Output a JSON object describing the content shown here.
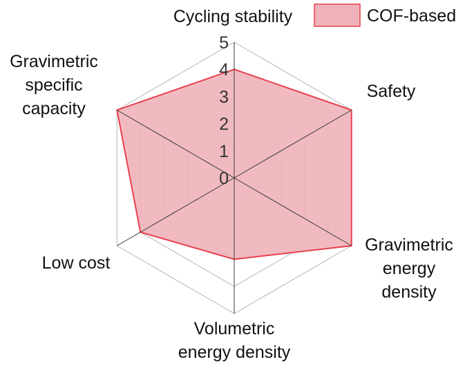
{
  "chart_data": {
    "type": "radar",
    "title": "",
    "axes": [
      {
        "label_lines": [
          "Cycling stability"
        ]
      },
      {
        "label_lines": [
          "Safety"
        ]
      },
      {
        "label_lines": [
          "Gravimetric",
          "energy",
          "density"
        ]
      },
      {
        "label_lines": [
          "Volumetric",
          "energy density"
        ]
      },
      {
        "label_lines": [
          "Low cost"
        ]
      },
      {
        "label_lines": [
          "Gravimetric",
          "specific",
          "capacity"
        ]
      }
    ],
    "rlim": [
      0,
      5
    ],
    "ticks": [
      "0",
      "1",
      "2",
      "3",
      "4",
      "5"
    ],
    "grid": true,
    "legend_position": "top-right",
    "series": [
      {
        "name": "COF-based",
        "values": [
          4,
          5,
          5,
          3,
          4,
          5
        ],
        "fill": "#f0b2ba",
        "stroke": "#e8404c"
      }
    ]
  }
}
